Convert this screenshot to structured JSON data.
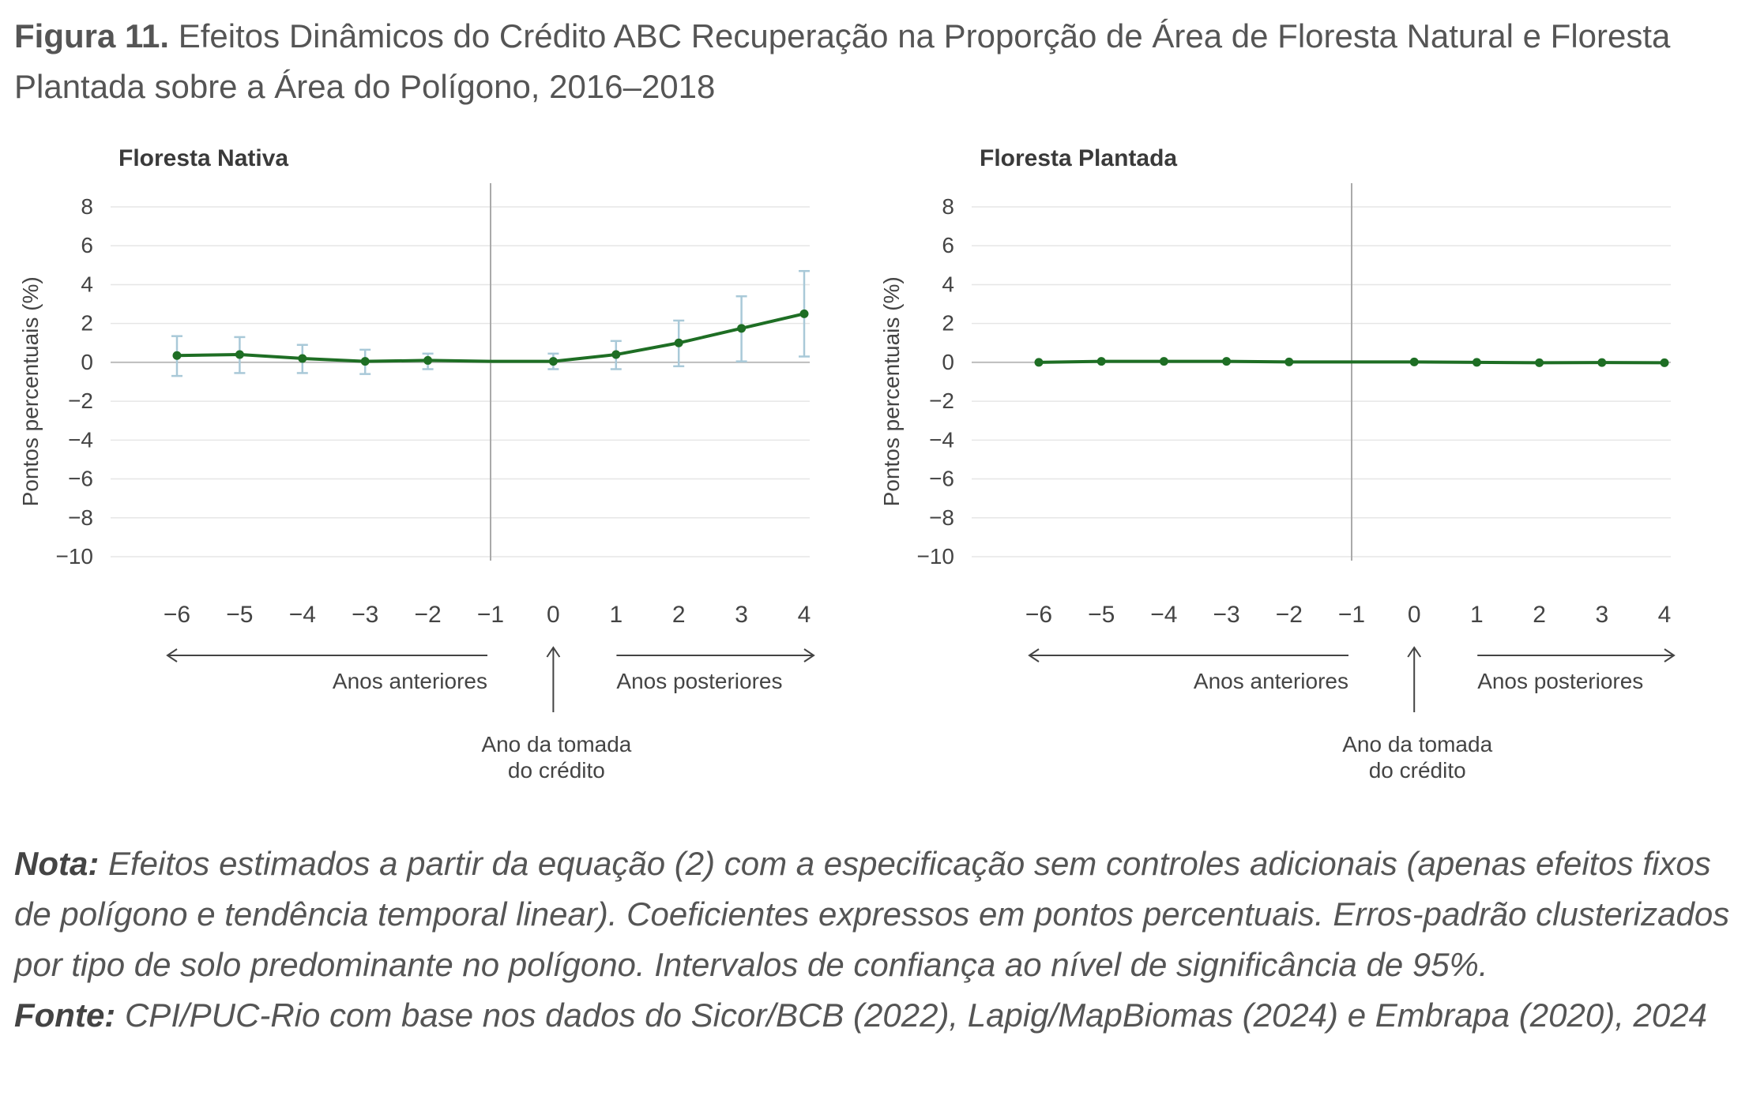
{
  "figure": {
    "label": "Figura 11.",
    "title": "Efeitos Dinâmicos do Crédito ABC Recuperação na Proporção de Área de Floresta Natural e Floresta Plantada sobre a Área do Polígono, 2016–2018"
  },
  "annotations": {
    "left_arrow_label": "Anos anteriores",
    "right_arrow_label": "Anos posteriores",
    "event_label_line1": "Ano da tomada",
    "event_label_line2": "do crédito"
  },
  "chart_data": [
    {
      "type": "line",
      "title": "Floresta Nativa",
      "ylabel": "Pontos percentuais (%)",
      "xlabel": "",
      "x": [
        -6,
        -5,
        -4,
        -3,
        -2,
        -1,
        0,
        1,
        2,
        3,
        4
      ],
      "x_tick_labels": [
        "−6",
        "−5",
        "−4",
        "−3",
        "−2",
        "−1",
        "0",
        "1",
        "2",
        "3",
        "4"
      ],
      "y_ticks": [
        8,
        6,
        4,
        2,
        0,
        -2,
        -4,
        -6,
        -8,
        -10
      ],
      "y_tick_labels": [
        "8",
        "6",
        "4",
        "2",
        "0",
        "−2",
        "−4",
        "−6",
        "−8",
        "−10"
      ],
      "ylim": [
        -10,
        8
      ],
      "reference_x": -1,
      "grid": true,
      "series": [
        {
          "values": [
            0.35,
            0.4,
            0.2,
            0.05,
            0.1,
            0.05,
            0.05,
            0.4,
            1.0,
            1.75,
            2.5
          ],
          "ci_lower": [
            -0.7,
            -0.55,
            -0.55,
            -0.6,
            -0.35,
            null,
            -0.35,
            -0.35,
            -0.2,
            0.05,
            0.3
          ],
          "ci_upper": [
            1.35,
            1.3,
            0.9,
            0.65,
            0.45,
            null,
            0.45,
            1.1,
            2.15,
            3.4,
            4.7
          ]
        }
      ],
      "colors": {
        "line": "#1e6e24",
        "ci": "#a9c9d8",
        "grid": "#e6e6e6",
        "reference": "#aaaaaa"
      }
    },
    {
      "type": "line",
      "title": "Floresta Plantada",
      "ylabel": "Pontos percentuais (%)",
      "xlabel": "",
      "x": [
        -6,
        -5,
        -4,
        -3,
        -2,
        -1,
        0,
        1,
        2,
        3,
        4
      ],
      "x_tick_labels": [
        "−6",
        "−5",
        "−4",
        "−3",
        "−2",
        "−1",
        "0",
        "1",
        "2",
        "3",
        "4"
      ],
      "y_ticks": [
        8,
        6,
        4,
        2,
        0,
        -2,
        -4,
        -6,
        -8,
        -10
      ],
      "y_tick_labels": [
        "8",
        "6",
        "4",
        "2",
        "0",
        "−2",
        "−4",
        "−6",
        "−8",
        "−10"
      ],
      "ylim": [
        -10,
        8
      ],
      "reference_x": -1,
      "grid": true,
      "series": [
        {
          "values": [
            0.0,
            0.05,
            0.05,
            0.05,
            0.02,
            0.02,
            0.02,
            0.0,
            -0.02,
            -0.01,
            -0.02
          ],
          "ci_lower": [
            null,
            null,
            null,
            null,
            null,
            null,
            null,
            null,
            null,
            null,
            null
          ],
          "ci_upper": [
            null,
            null,
            null,
            null,
            null,
            null,
            null,
            null,
            null,
            null,
            null
          ]
        }
      ],
      "colors": {
        "line": "#1e6e24",
        "ci": "#a9c9d8",
        "grid": "#e6e6e6",
        "reference": "#aaaaaa"
      }
    }
  ],
  "notes": {
    "nota_label": "Nota:",
    "nota_text": "Efeitos estimados a partir da equação (2) com a especificação sem controles adicionais (apenas efeitos fixos de polígono e tendência temporal linear). Coeficientes expressos em pontos percentuais. Erros-padrão clusterizados por tipo de solo predominante no polígono. Intervalos de confiança ao nível de significância de 95%.",
    "fonte_label": "Fonte:",
    "fonte_text": "CPI/PUC-Rio com base nos dados do Sicor/BCB (2022), Lapig/MapBiomas (2024) e Embrapa (2020), 2024"
  }
}
